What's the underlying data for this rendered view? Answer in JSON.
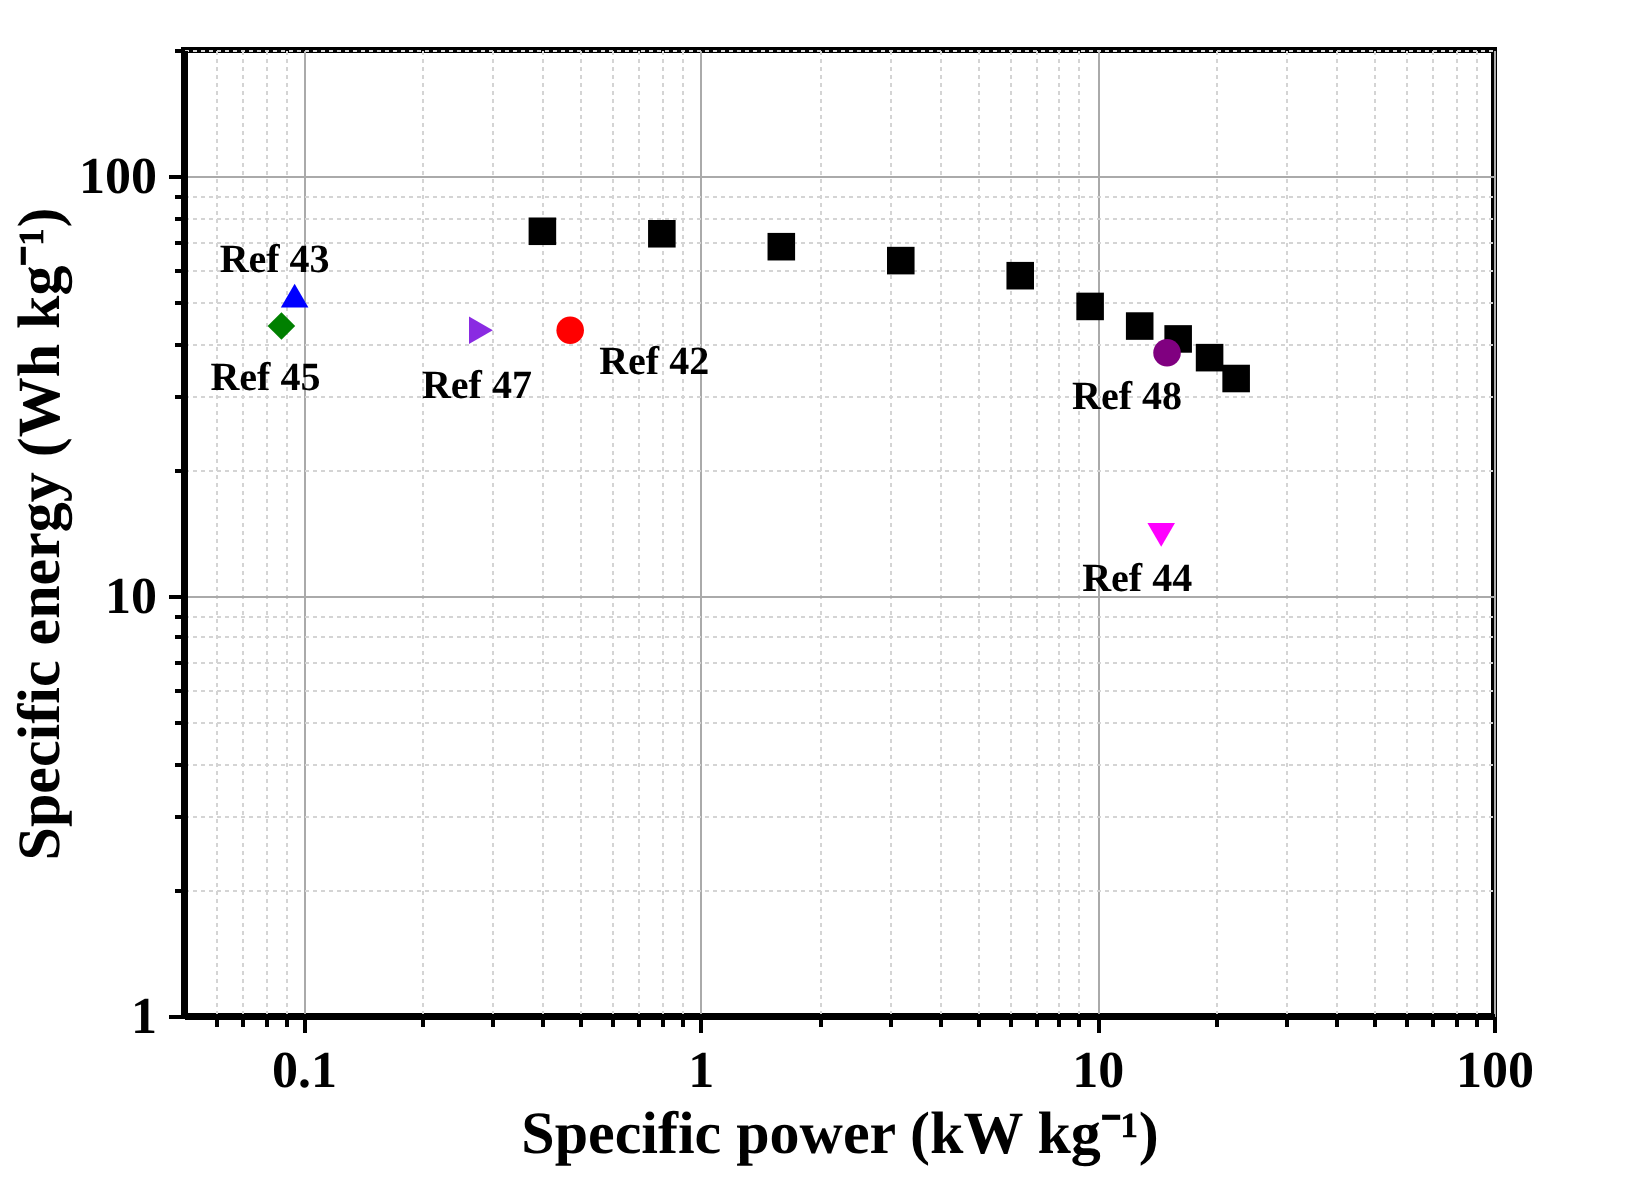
{
  "chart_data": {
    "type": "scatter",
    "xlabel": "Specific power (kW kg⁻¹)",
    "ylabel": "Specific energy (Wh kg⁻¹)",
    "log": "xy",
    "grid": true,
    "legend": false,
    "xlim": [
      0.05,
      100
    ],
    "ylim": [
      1,
      200
    ],
    "xticks": [
      {
        "value": 0.06,
        "label": null
      },
      {
        "value": 0.07,
        "label": null
      },
      {
        "value": 0.08,
        "label": null
      },
      {
        "value": 0.09,
        "label": null
      },
      0.1,
      {
        "value": 0.2,
        "label": null
      },
      {
        "value": 0.3,
        "label": null
      },
      {
        "value": 0.4,
        "label": null
      },
      {
        "value": 0.5,
        "label": null
      },
      {
        "value": 0.6,
        "label": null
      },
      {
        "value": 0.7,
        "label": null
      },
      {
        "value": 0.8,
        "label": null
      },
      {
        "value": 0.9,
        "label": null
      },
      1,
      {
        "value": 2,
        "label": null
      },
      {
        "value": 3,
        "label": null
      },
      {
        "value": 4,
        "label": null
      },
      {
        "value": 5,
        "label": null
      },
      {
        "value": 6,
        "label": null
      },
      {
        "value": 7,
        "label": null
      },
      {
        "value": 8,
        "label": null
      },
      {
        "value": 9,
        "label": null
      },
      10,
      {
        "value": 20,
        "label": null
      },
      {
        "value": 30,
        "label": null
      },
      {
        "value": 40,
        "label": null
      },
      {
        "value": 50,
        "label": null
      },
      {
        "value": 60,
        "label": null
      },
      {
        "value": 70,
        "label": null
      },
      {
        "value": 80,
        "label": null
      },
      {
        "value": 90,
        "label": null
      },
      100
    ],
    "yticks": [
      1,
      {
        "value": 2,
        "label": null
      },
      {
        "value": 3,
        "label": null
      },
      {
        "value": 4,
        "label": null
      },
      {
        "value": 5,
        "label": null
      },
      {
        "value": 6,
        "label": null
      },
      {
        "value": 7,
        "label": null
      },
      {
        "value": 8,
        "label": null
      },
      {
        "value": 9,
        "label": null
      },
      10,
      {
        "value": 20,
        "label": null
      },
      {
        "value": 30,
        "label": null
      },
      {
        "value": 40,
        "label": null
      },
      {
        "value": 50,
        "label": null
      },
      {
        "value": 60,
        "label": null
      },
      {
        "value": 70,
        "label": null
      },
      {
        "value": 80,
        "label": null
      },
      {
        "value": 90,
        "label": null
      },
      100,
      {
        "value": 200,
        "label": null
      }
    ],
    "series": [
      {
        "color": "#000000",
        "marker": "square",
        "x": [
          0.4,
          0.8,
          1.6,
          3.2,
          6.4,
          9.6,
          12.8,
          16,
          19.2,
          22.4
        ],
        "values": [
          74,
          73,
          68,
          63,
          58,
          49,
          44,
          41,
          37,
          33
        ]
      },
      {
        "name": "Ref 43",
        "color": "#0000ff",
        "marker": "triangle",
        "x": [
          0.095
        ],
        "values": [
          52
        ]
      },
      {
        "name": "Ref 45",
        "color": "#008000",
        "marker": "diamond",
        "x": [
          0.088
        ],
        "values": [
          44
        ]
      },
      {
        "name": "Ref 47",
        "color": "#8a2be2",
        "marker": "triangle-right",
        "x": [
          0.28
        ],
        "values": [
          43
        ]
      },
      {
        "name": "Ref 42",
        "color": "#ff0000",
        "marker": "circle",
        "x": [
          0.47
        ],
        "values": [
          43
        ]
      },
      {
        "name": "Ref 48",
        "color": "#800080",
        "marker": "circle",
        "x": [
          15
        ],
        "values": [
          38
        ]
      },
      {
        "name": "Ref 44",
        "color": "#ff00ff",
        "marker": "triangle-down",
        "x": [
          14.5
        ],
        "values": [
          14
        ]
      }
    ]
  }
}
